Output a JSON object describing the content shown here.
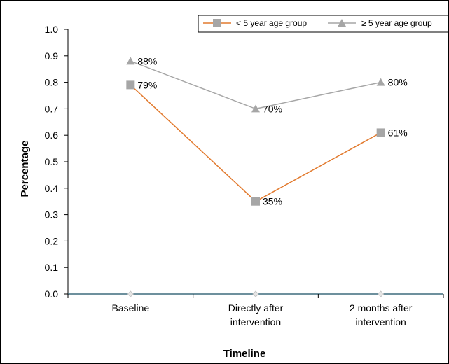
{
  "chart_data": {
    "type": "line",
    "categories": [
      [
        "Baseline"
      ],
      [
        "Directly after",
        "intervention"
      ],
      [
        "2 months after",
        "intervention"
      ]
    ],
    "series": [
      {
        "name": "< 5 year age group",
        "values": [
          0.79,
          0.35,
          0.61
        ],
        "labels": [
          "79%",
          "35%",
          "61%"
        ],
        "color": "#e27a2e",
        "marker_color": "#a6a6a6",
        "marker": "square"
      },
      {
        "name": "≥ 5 year age group",
        "values": [
          0.88,
          0.7,
          0.8
        ],
        "labels": [
          "88%",
          "70%",
          "80%"
        ],
        "color": "#a6a6a6",
        "marker_color": "#a6a6a6",
        "marker": "triangle"
      }
    ],
    "xlabel": "Timeline",
    "ylabel": "Percentage",
    "ylim": [
      0,
      1.0
    ],
    "yticks": [
      "0.0",
      "0.1",
      "0.2",
      "0.3",
      "0.4",
      "0.5",
      "0.6",
      "0.7",
      "0.8",
      "0.9",
      "1.0"
    ],
    "baseline_color": "#3d6b7d",
    "grid": false,
    "legend_position": "top-right"
  }
}
